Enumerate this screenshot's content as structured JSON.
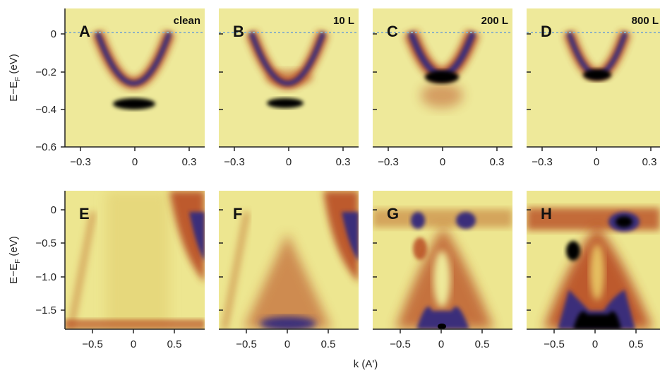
{
  "figure": {
    "colors": {
      "background": "#EFEA98",
      "low": "#E6DC7A",
      "mid": "#B03A18",
      "high": "#3A2F7A",
      "max": "#000000",
      "fermi_line": "#8FB3C4"
    },
    "top_row": {
      "ylabel_main": "E−E",
      "ylabel_sub": "F",
      "ylabel_unit": " (eV)",
      "yticks": [
        "0",
        "−0.2",
        "−0.4",
        "−0.6"
      ],
      "xticks": [
        "−0.3",
        "0",
        "0.3"
      ],
      "panels": [
        {
          "letter": "A",
          "dose": "clean"
        },
        {
          "letter": "B",
          "dose": "10 L"
        },
        {
          "letter": "C",
          "dose": "200 L"
        },
        {
          "letter": "D",
          "dose": "800 L"
        }
      ]
    },
    "bottom_row": {
      "ylabel_main": "E−E",
      "ylabel_sub": "F",
      "ylabel_unit": " (eV)",
      "yticks": [
        "0",
        "−0.5",
        "−1.0",
        "−1.5"
      ],
      "xticks": [
        "−0.5",
        "0",
        "0.5"
      ],
      "xlabel": "k (A')",
      "panels": [
        {
          "letter": "E"
        },
        {
          "letter": "F"
        },
        {
          "letter": "G"
        },
        {
          "letter": "H"
        }
      ]
    }
  }
}
